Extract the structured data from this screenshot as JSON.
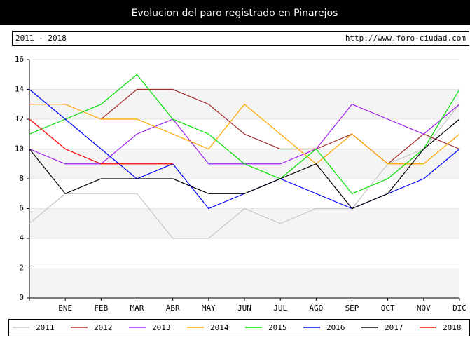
{
  "chart_data": {
    "type": "line",
    "title": "Evolucion del paro registrado en Pinarejos",
    "subtitle": "2011 - 2018",
    "source": "http://www.foro-ciudad.com",
    "categories": [
      null,
      "ENE",
      "FEB",
      "MAR",
      "ABR",
      "MAY",
      "JUN",
      "JUL",
      "AGO",
      "SEP",
      "OCT",
      "NOV",
      "DIC"
    ],
    "ylim": [
      0,
      16
    ],
    "yticks": [
      0,
      2,
      4,
      6,
      8,
      10,
      12,
      14,
      16
    ],
    "grid": true,
    "series": [
      {
        "name": "2011",
        "color": "#c8c8c8",
        "values": [
          5,
          7,
          7,
          7,
          4,
          4,
          6,
          5,
          6,
          6,
          9,
          10,
          13
        ]
      },
      {
        "name": "2012",
        "color": "#a52a2a",
        "values": [
          null,
          null,
          12,
          14,
          14,
          13,
          11,
          10,
          10,
          11,
          9,
          11,
          10
        ]
      },
      {
        "name": "2013",
        "color": "#a020f0",
        "values": [
          10,
          9,
          9,
          11,
          12,
          9,
          9,
          9,
          10,
          13,
          12,
          11,
          13
        ]
      },
      {
        "name": "2014",
        "color": "#ffa500",
        "values": [
          13,
          13,
          12,
          12,
          11,
          10,
          13,
          11,
          9,
          11,
          9,
          9,
          11
        ]
      },
      {
        "name": "2015",
        "color": "#00e000",
        "values": [
          11,
          12,
          13,
          15,
          12,
          11,
          9,
          8,
          10,
          7,
          8,
          10,
          14
        ]
      },
      {
        "name": "2016",
        "color": "#0000ff",
        "values": [
          14,
          12,
          10,
          8,
          9,
          6,
          7,
          8,
          7,
          6,
          7,
          8,
          10
        ]
      },
      {
        "name": "2017",
        "color": "#000000",
        "values": [
          10,
          7,
          8,
          8,
          8,
          7,
          7,
          8,
          9,
          6,
          7,
          10,
          12
        ]
      },
      {
        "name": "2018",
        "color": "#ff0000",
        "values": [
          12,
          10,
          9,
          9,
          9,
          null,
          null,
          null,
          null,
          null,
          null,
          null,
          null
        ]
      }
    ]
  }
}
